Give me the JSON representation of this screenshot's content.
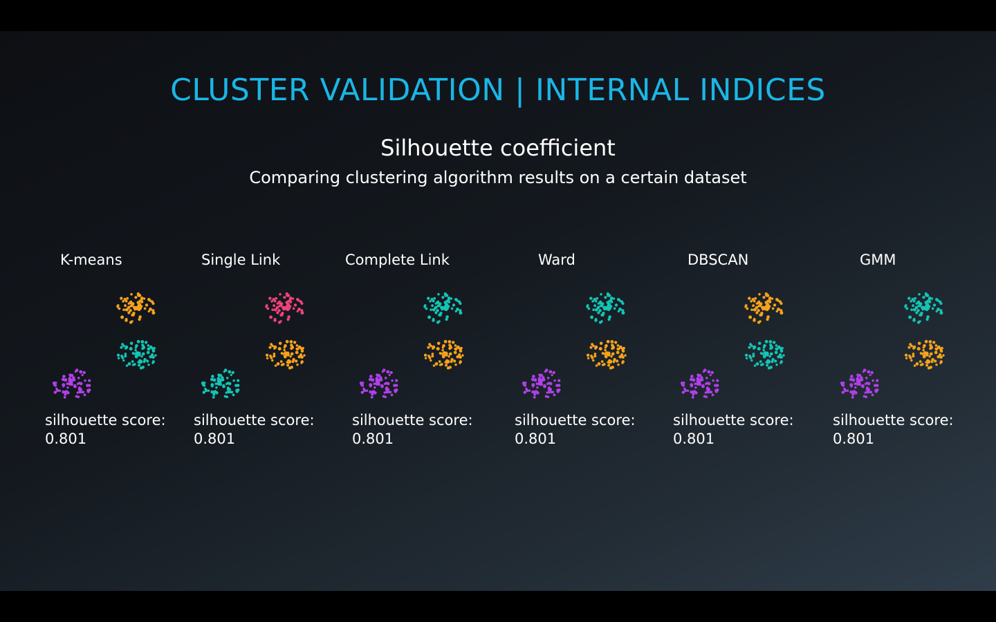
{
  "slide": {
    "title": "CLUSTER VALIDATION | INTERNAL INDICES",
    "subtitle": "Silhouette coefficient",
    "caption": "Comparing clustering algorithm results on a certain dataset"
  },
  "colors": {
    "purple": "#b040e8",
    "orange": "#f7a21c",
    "teal": "#14c4b4",
    "pink": "#f0427a"
  },
  "panels": [
    {
      "name": "K-means",
      "score_label": "silhouette score:",
      "score": "0.801",
      "clusters": [
        {
          "position": "top",
          "color": "orange"
        },
        {
          "position": "middle",
          "color": "teal"
        },
        {
          "position": "bottom-left",
          "color": "purple"
        }
      ]
    },
    {
      "name": "Single Link",
      "score_label": "silhouette score:",
      "score": "0.801",
      "clusters": [
        {
          "position": "top",
          "color": "pink"
        },
        {
          "position": "middle",
          "color": "orange"
        },
        {
          "position": "bottom-left",
          "color": "teal"
        }
      ]
    },
    {
      "name": "Complete Link",
      "score_label": "silhouette score:",
      "score": "0.801",
      "clusters": [
        {
          "position": "top",
          "color": "teal"
        },
        {
          "position": "middle",
          "color": "orange"
        },
        {
          "position": "bottom-left",
          "color": "purple"
        }
      ]
    },
    {
      "name": "Ward",
      "score_label": "silhouette score:",
      "score": "0.801",
      "clusters": [
        {
          "position": "top",
          "color": "teal"
        },
        {
          "position": "middle",
          "color": "orange"
        },
        {
          "position": "bottom-left",
          "color": "purple"
        }
      ]
    },
    {
      "name": "DBSCAN",
      "score_label": "silhouette score:",
      "score": "0.801",
      "clusters": [
        {
          "position": "top",
          "color": "orange"
        },
        {
          "position": "middle",
          "color": "teal"
        },
        {
          "position": "bottom-left",
          "color": "purple"
        }
      ]
    },
    {
      "name": "GMM",
      "score_label": "silhouette score:",
      "score": "0.801",
      "clusters": [
        {
          "position": "top",
          "color": "teal"
        },
        {
          "position": "middle",
          "color": "orange"
        },
        {
          "position": "bottom-left",
          "color": "purple"
        }
      ]
    }
  ]
}
